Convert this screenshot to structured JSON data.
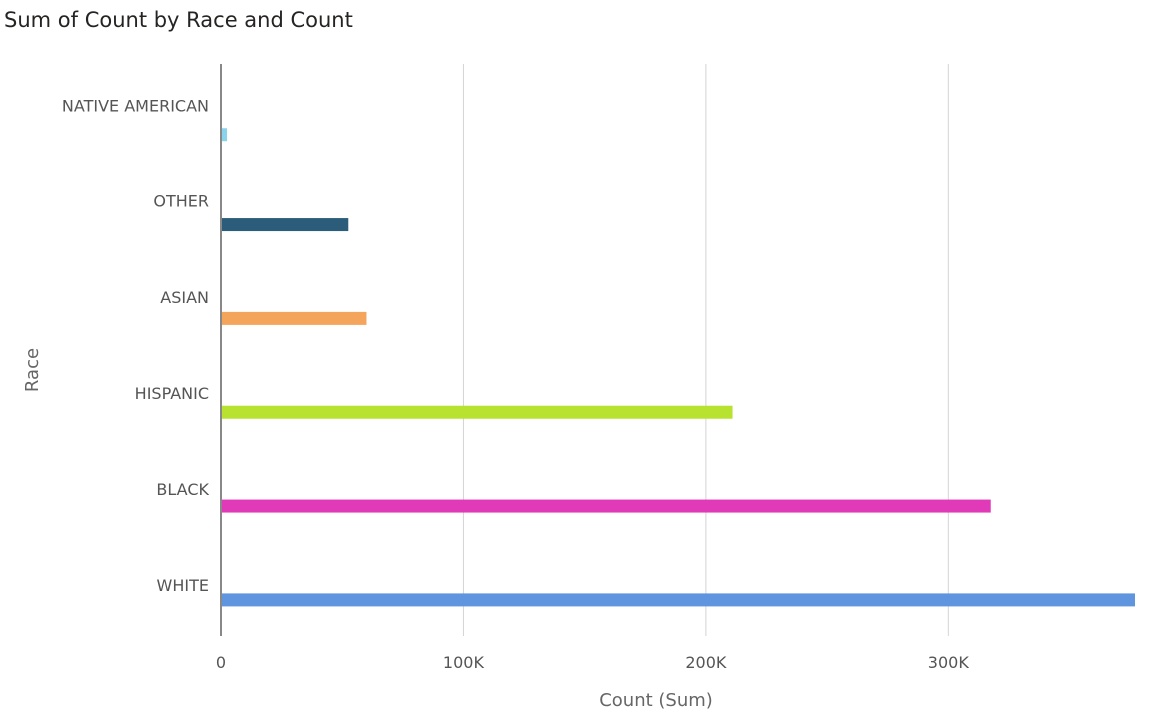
{
  "chart_data": {
    "type": "bar",
    "orientation": "horizontal",
    "title": "Sum of Count by Race and Count",
    "xlabel": "Count (Sum)",
    "ylabel": "Race",
    "categories": [
      "NATIVE AMERICAN",
      "OTHER",
      "ASIAN",
      "HISPANIC",
      "BLACK",
      "WHITE"
    ],
    "values": [
      2500,
      52500,
      60000,
      211000,
      317500,
      377000
    ],
    "colors": [
      "#8ad4eb",
      "#2b5d7a",
      "#f5a55b",
      "#b7e22f",
      "#e03ab9",
      "#5f95de"
    ],
    "xlim": [
      0,
      377000
    ],
    "xticks": [
      0,
      100000,
      200000,
      300000
    ],
    "xtick_labels": [
      "0",
      "100K",
      "200K",
      "300K"
    ],
    "grid": true,
    "legend": "none"
  }
}
